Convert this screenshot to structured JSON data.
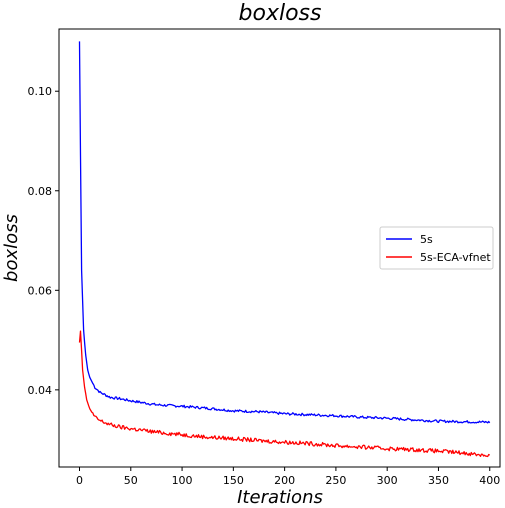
{
  "chart_data": {
    "type": "line",
    "title": "boxloss",
    "xlabel": "Iterations",
    "ylabel": "boxloss",
    "xlim": [
      -20,
      410
    ],
    "ylim": [
      0.0245,
      0.1125
    ],
    "xticks": [
      0,
      50,
      100,
      150,
      200,
      250,
      300,
      350,
      400
    ],
    "yticks": [
      0.04,
      0.06,
      0.08,
      0.1
    ],
    "ytick_labels": [
      "0.04",
      "0.06",
      "0.08",
      "0.10"
    ],
    "legend_position": "center-right",
    "grid": false,
    "series": [
      {
        "name": "5s",
        "color": "#0000ff",
        "points": [
          [
            0,
            0.11
          ],
          [
            2,
            0.064
          ],
          [
            4,
            0.052
          ],
          [
            6,
            0.047
          ],
          [
            8,
            0.044
          ],
          [
            10,
            0.0425
          ],
          [
            15,
            0.0405
          ],
          [
            20,
            0.0395
          ],
          [
            30,
            0.0385
          ],
          [
            40,
            0.0382
          ],
          [
            50,
            0.0378
          ],
          [
            75,
            0.037
          ],
          [
            100,
            0.0367
          ],
          [
            125,
            0.0363
          ],
          [
            150,
            0.0358
          ],
          [
            175,
            0.0356
          ],
          [
            200,
            0.0352
          ],
          [
            225,
            0.035
          ],
          [
            250,
            0.0348
          ],
          [
            275,
            0.0345
          ],
          [
            300,
            0.0343
          ],
          [
            325,
            0.034
          ],
          [
            350,
            0.0337
          ],
          [
            375,
            0.0336
          ],
          [
            400,
            0.0335
          ]
        ]
      },
      {
        "name": "5s-ECA-vfnet",
        "color": "#ff0000",
        "points": [
          [
            0,
            0.0495
          ],
          [
            1,
            0.0518
          ],
          [
            3,
            0.044
          ],
          [
            5,
            0.0405
          ],
          [
            7,
            0.038
          ],
          [
            10,
            0.0362
          ],
          [
            15,
            0.0345
          ],
          [
            20,
            0.0338
          ],
          [
            30,
            0.033
          ],
          [
            40,
            0.0325
          ],
          [
            50,
            0.0322
          ],
          [
            75,
            0.0315
          ],
          [
            100,
            0.031
          ],
          [
            125,
            0.0305
          ],
          [
            150,
            0.0302
          ],
          [
            175,
            0.0298
          ],
          [
            200,
            0.0295
          ],
          [
            225,
            0.0292
          ],
          [
            250,
            0.0288
          ],
          [
            275,
            0.0285
          ],
          [
            300,
            0.0282
          ],
          [
            325,
            0.028
          ],
          [
            350,
            0.0277
          ],
          [
            375,
            0.0273
          ],
          [
            400,
            0.0268
          ]
        ]
      }
    ]
  }
}
